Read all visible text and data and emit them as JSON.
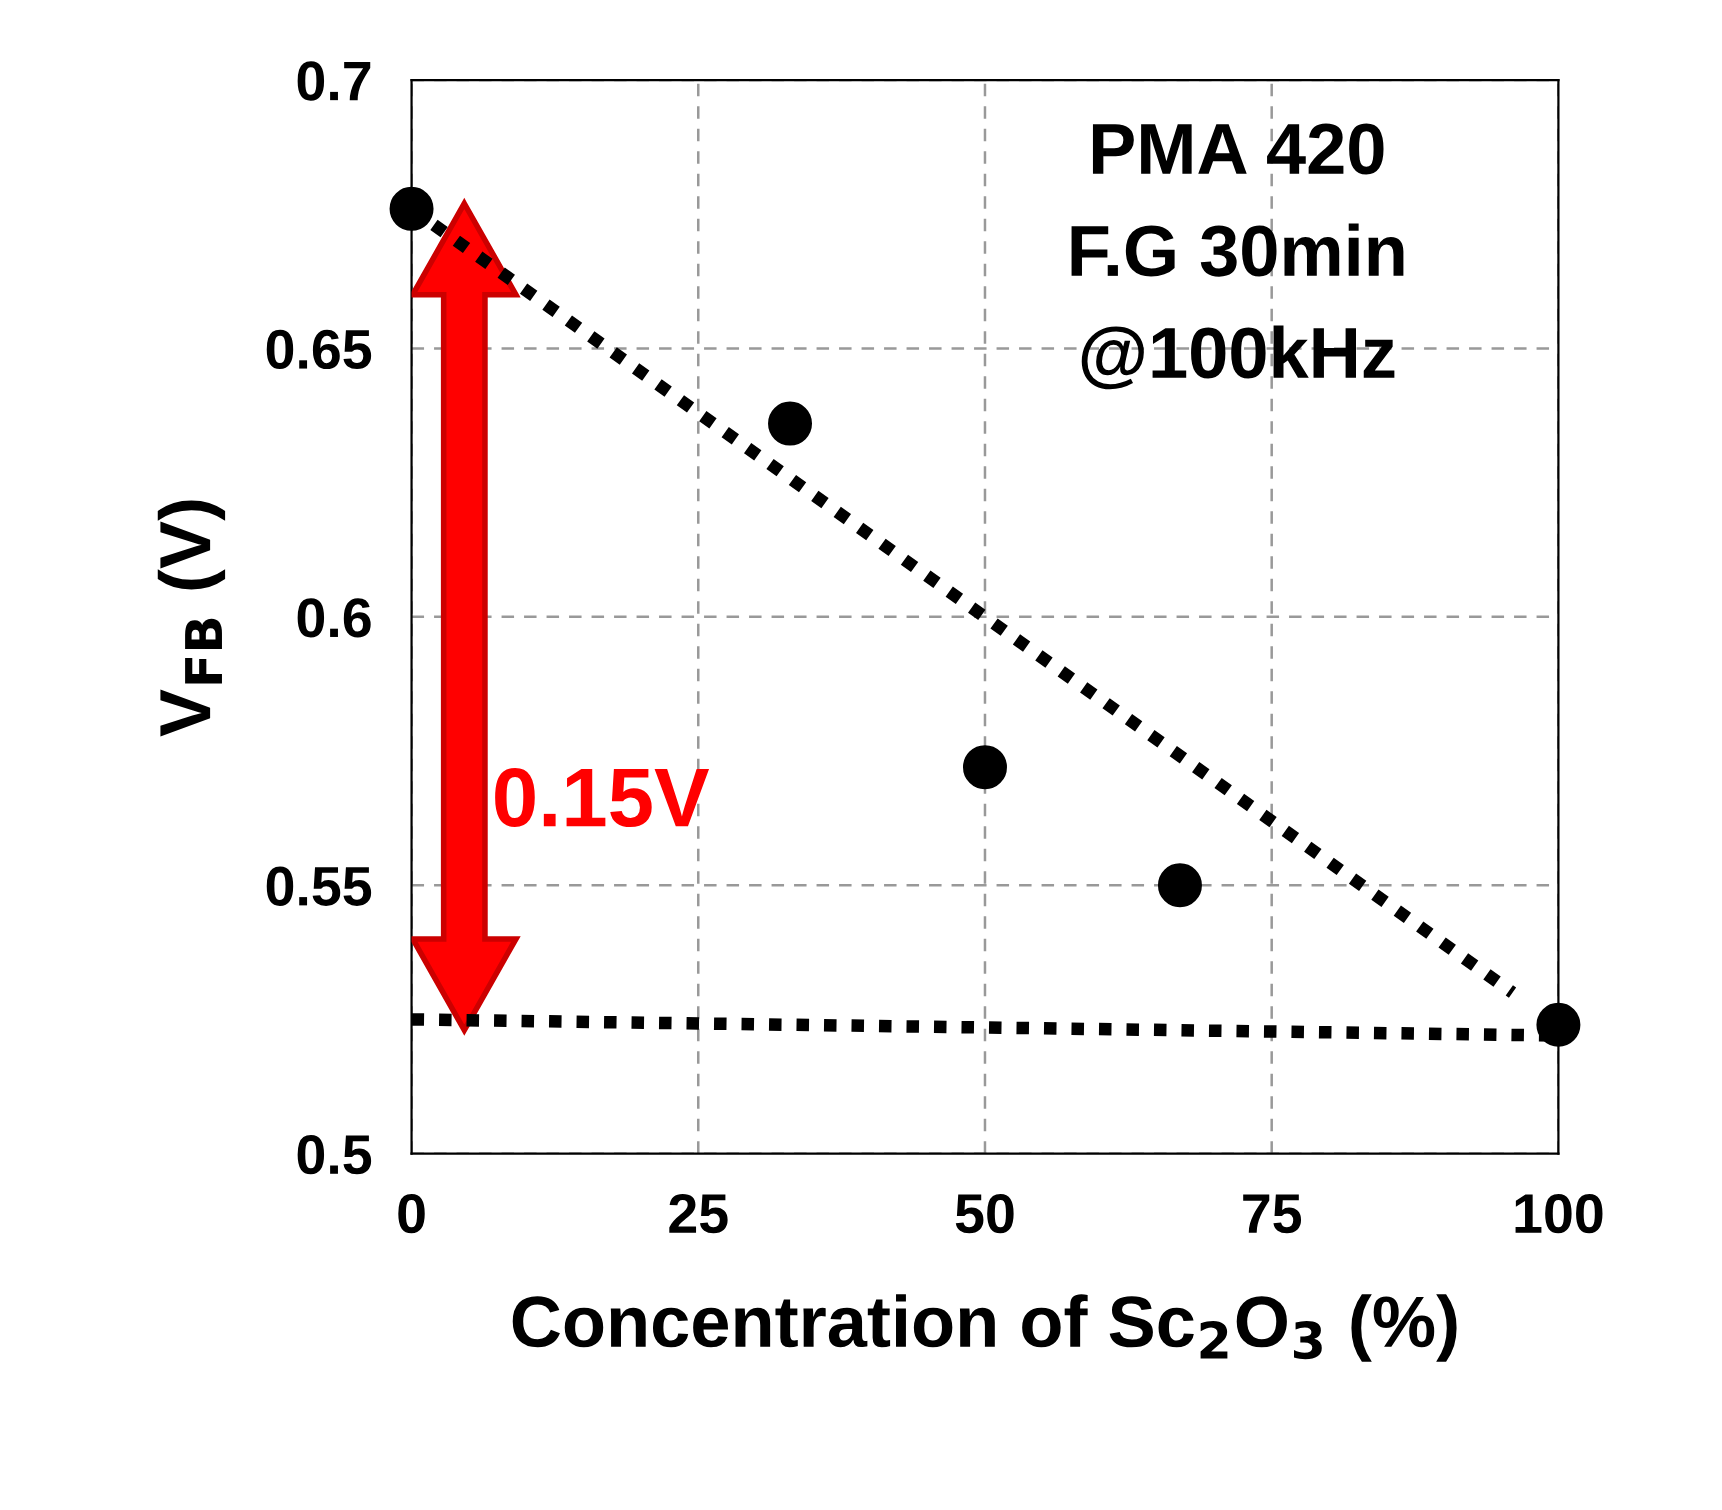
{
  "chart_data": {
    "type": "scatter",
    "xlabel": "Concentration of Sc$_{2}$O$_{3}$ (%)",
    "ylabel": "V$_{FB}$ (V)",
    "xlim": [
      0,
      100
    ],
    "xticks": [
      0,
      25,
      50,
      75,
      100
    ],
    "ylim": [
      0.5,
      0.7
    ],
    "yticks": [
      0.5,
      0.55,
      0.6,
      0.65,
      0.7
    ],
    "grid": true,
    "series": [
      {
        "color": "#000000",
        "marker": "circle",
        "x": [
          0,
          33,
          50,
          67,
          100
        ],
        "values": [
          0.676,
          0.636,
          0.572,
          0.55,
          0.524
        ]
      },
      {
        "type": "line",
        "color": "#000000",
        "line_style": "dotted",
        "marker": "none",
        "x": [
          0,
          96
        ],
        "values": [
          0.676,
          0.53
        ]
      },
      {
        "type": "line",
        "color": "#000000",
        "line_style": "dotted",
        "marker": "none",
        "x": [
          0,
          100
        ],
        "values": [
          0.525,
          0.522
        ]
      }
    ],
    "annotations": [
      "PMA 420",
      "F.G 30min",
      "@100kHz",
      "0.15V"
    ]
  }
}
